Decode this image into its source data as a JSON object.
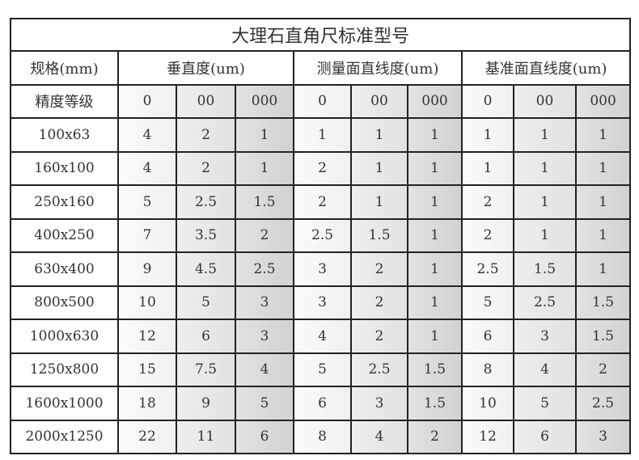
{
  "title": "大理石直角尺标准型号",
  "headers": {
    "spec": "规格(mm)",
    "groups": [
      "垂直度(um)",
      "测量面直线度(um)",
      "基准面直线度(um)"
    ]
  },
  "grade_row": {
    "label": "精度等级",
    "grades": [
      "0",
      "00",
      "000",
      "0",
      "00",
      "000",
      "0",
      "00",
      "000"
    ]
  },
  "rows": [
    {
      "spec": "100x63",
      "values": [
        "4",
        "2",
        "1",
        "1",
        "1",
        "1",
        "1",
        "1",
        "1"
      ]
    },
    {
      "spec": "160x100",
      "values": [
        "4",
        "2",
        "1",
        "2",
        "1",
        "1",
        "1",
        "1",
        "1"
      ]
    },
    {
      "spec": "250x160",
      "values": [
        "5",
        "2.5",
        "1.5",
        "2",
        "1",
        "1",
        "2",
        "1",
        "1"
      ]
    },
    {
      "spec": "400x250",
      "values": [
        "7",
        "3.5",
        "2",
        "2.5",
        "1.5",
        "1",
        "2",
        "1",
        "1"
      ]
    },
    {
      "spec": "630x400",
      "values": [
        "9",
        "4.5",
        "2.5",
        "3",
        "2",
        "1",
        "2.5",
        "1.5",
        "1"
      ]
    },
    {
      "spec": "800x500",
      "values": [
        "10",
        "5",
        "3",
        "3",
        "2",
        "1",
        "5",
        "2.5",
        "1.5"
      ]
    },
    {
      "spec": "1000x630",
      "values": [
        "12",
        "6",
        "3",
        "4",
        "2",
        "1",
        "6",
        "3",
        "1.5"
      ]
    },
    {
      "spec": "1250x800",
      "values": [
        "15",
        "7.5",
        "4",
        "5",
        "2.5",
        "1.5",
        "8",
        "4",
        "2"
      ]
    },
    {
      "spec": "1600x1000",
      "values": [
        "18",
        "9",
        "5",
        "6",
        "3",
        "1.5",
        "10",
        "5",
        "2.5"
      ]
    },
    {
      "spec": "2000x1250",
      "values": [
        "22",
        "11",
        "6",
        "8",
        "4",
        "2",
        "12",
        "6",
        "3"
      ]
    }
  ]
}
